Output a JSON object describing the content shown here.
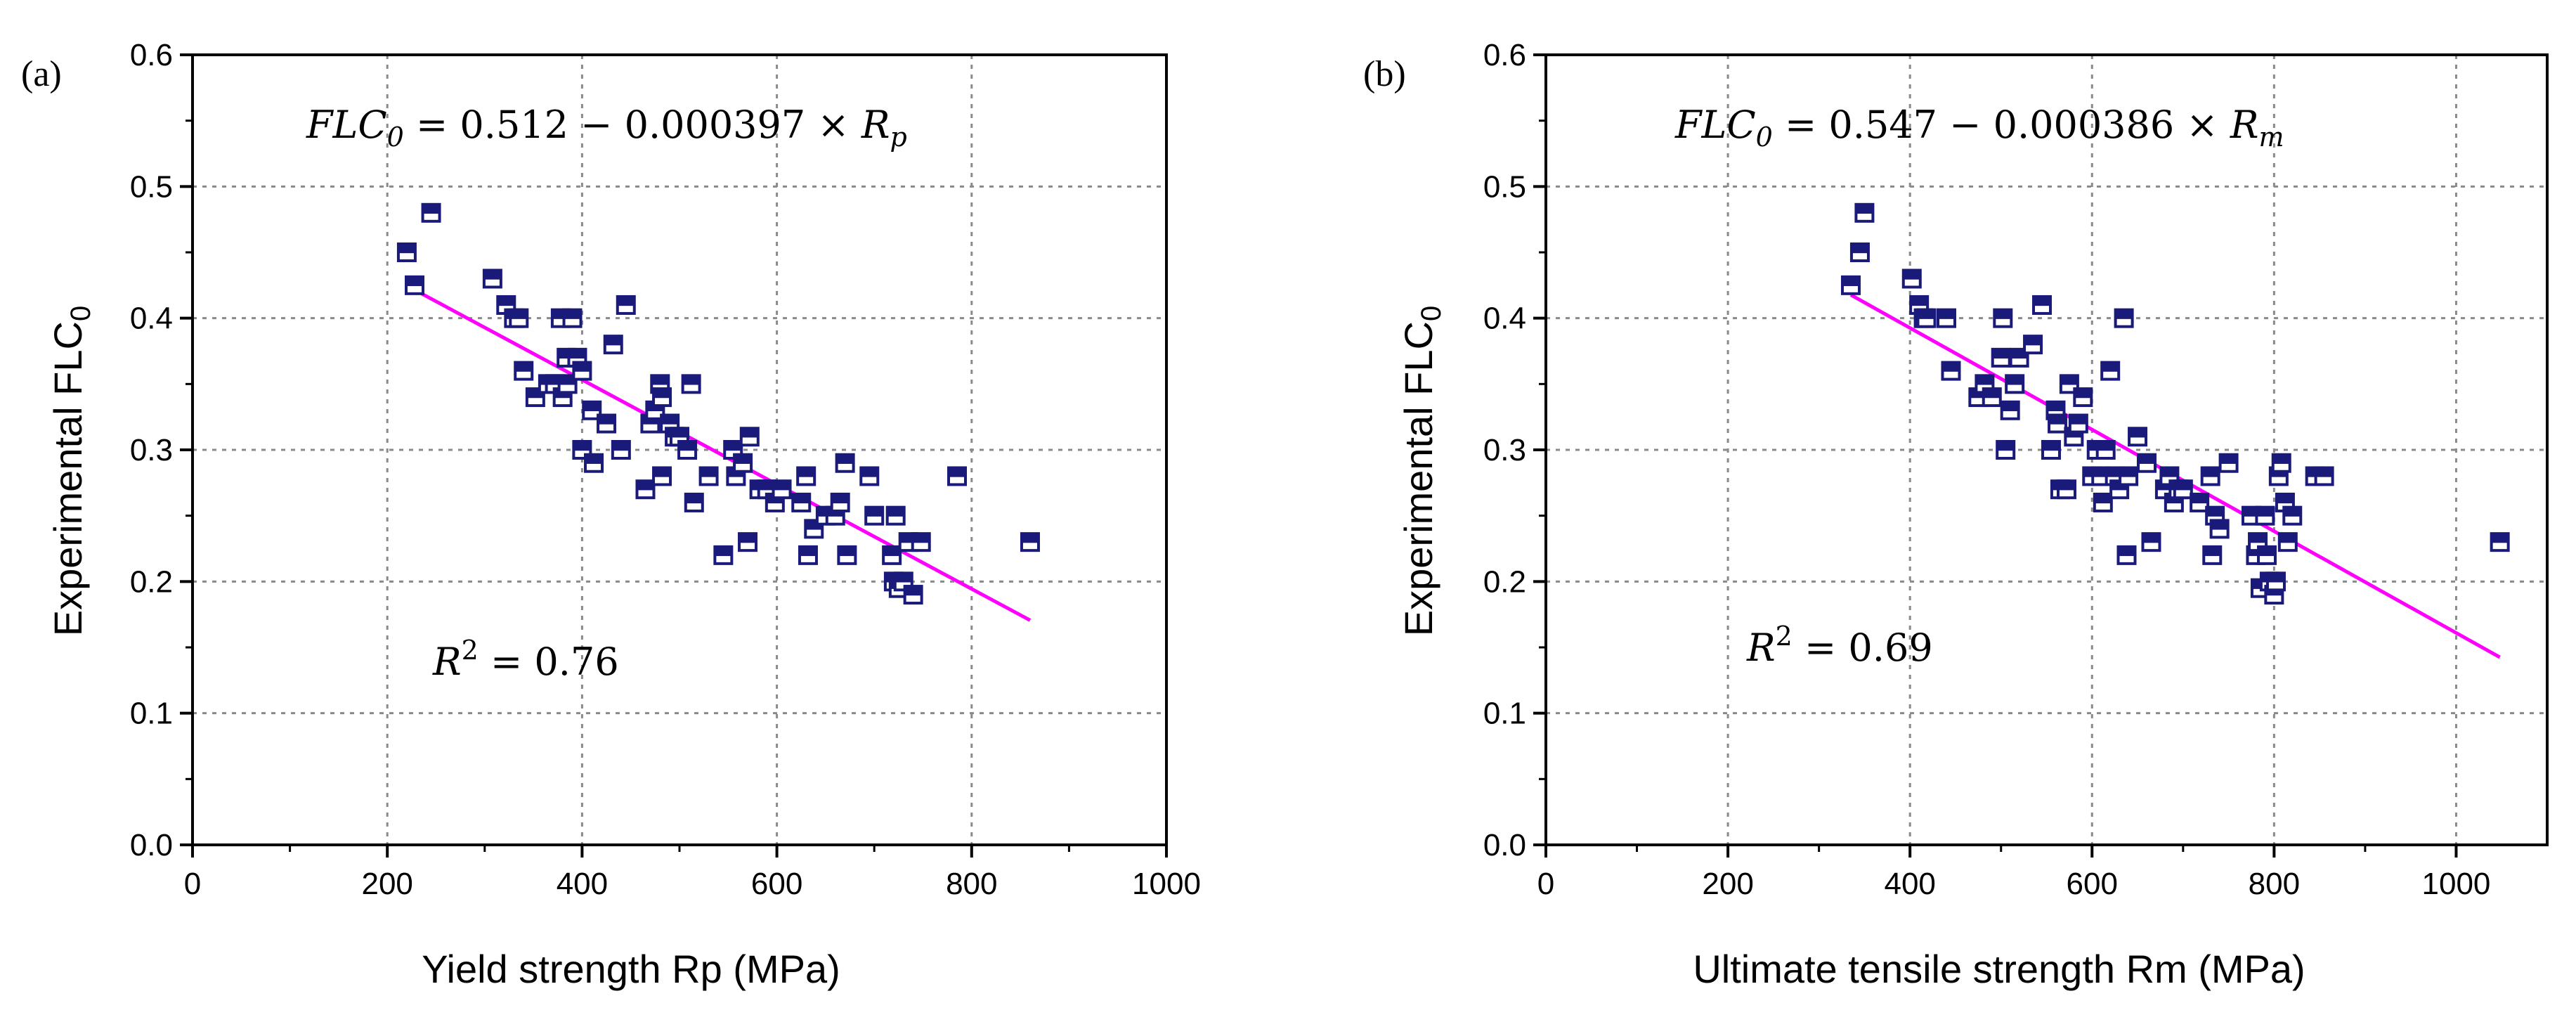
{
  "chart_data": [
    {
      "type": "scatter",
      "panel_label": "(a)",
      "xlabel": "Yield strength Rp (MPa)",
      "ylabel_main": "Experimental FLC",
      "ylabel_sub": "0",
      "xlim": [
        0,
        1000
      ],
      "ylim": [
        0.0,
        0.6
      ],
      "xticks": [
        "0",
        "200",
        "400",
        "600",
        "800",
        "1000"
      ],
      "yticks": [
        "0.0",
        "0.1",
        "0.2",
        "0.3",
        "0.4",
        "0.5",
        "0.6"
      ],
      "grid": true,
      "equation": {
        "lhs_main": "FLC",
        "lhs_sub": "0",
        "middle": " = 0.512 − 0.000397 × ",
        "rhs_main": "R",
        "rhs_sub": "p"
      },
      "r2": {
        "symbol": "R",
        "exponent": "2",
        "value_text": " = 0.76"
      },
      "fit": {
        "intercept": 0.512,
        "slope": -0.000397,
        "x_range": [
          228,
          860
        ]
      },
      "marker_color": "#1a1a7a",
      "fit_color": "#ff00ff",
      "points": [
        [
          220,
          0.45
        ],
        [
          228,
          0.425
        ],
        [
          245,
          0.48
        ],
        [
          308,
          0.43
        ],
        [
          322,
          0.41
        ],
        [
          330,
          0.4
        ],
        [
          335,
          0.4
        ],
        [
          340,
          0.36
        ],
        [
          352,
          0.34
        ],
        [
          365,
          0.35
        ],
        [
          372,
          0.35
        ],
        [
          380,
          0.34
        ],
        [
          378,
          0.4
        ],
        [
          384,
          0.37
        ],
        [
          385,
          0.35
        ],
        [
          390,
          0.4
        ],
        [
          395,
          0.37
        ],
        [
          400,
          0.36
        ],
        [
          400,
          0.3
        ],
        [
          410,
          0.33
        ],
        [
          412,
          0.29
        ],
        [
          425,
          0.32
        ],
        [
          432,
          0.38
        ],
        [
          440,
          0.3
        ],
        [
          445,
          0.41
        ],
        [
          465,
          0.27
        ],
        [
          470,
          0.32
        ],
        [
          475,
          0.33
        ],
        [
          480,
          0.35
        ],
        [
          482,
          0.34
        ],
        [
          482,
          0.28
        ],
        [
          490,
          0.32
        ],
        [
          495,
          0.31
        ],
        [
          500,
          0.31
        ],
        [
          508,
          0.3
        ],
        [
          512,
          0.35
        ],
        [
          515,
          0.26
        ],
        [
          530,
          0.28
        ],
        [
          545,
          0.22
        ],
        [
          555,
          0.3
        ],
        [
          558,
          0.28
        ],
        [
          565,
          0.29
        ],
        [
          570,
          0.23
        ],
        [
          572,
          0.31
        ],
        [
          582,
          0.27
        ],
        [
          590,
          0.27
        ],
        [
          598,
          0.26
        ],
        [
          605,
          0.27
        ],
        [
          625,
          0.26
        ],
        [
          630,
          0.28
        ],
        [
          632,
          0.22
        ],
        [
          638,
          0.24
        ],
        [
          650,
          0.25
        ],
        [
          660,
          0.25
        ],
        [
          665,
          0.26
        ],
        [
          670,
          0.29
        ],
        [
          672,
          0.22
        ],
        [
          695,
          0.28
        ],
        [
          700,
          0.25
        ],
        [
          718,
          0.22
        ],
        [
          720,
          0.2
        ],
        [
          722,
          0.25
        ],
        [
          725,
          0.195
        ],
        [
          730,
          0.2
        ],
        [
          735,
          0.23
        ],
        [
          740,
          0.19
        ],
        [
          748,
          0.23
        ],
        [
          785,
          0.28
        ],
        [
          860,
          0.23
        ]
      ]
    },
    {
      "type": "scatter",
      "panel_label": "(b)",
      "xlabel": "Ultimate tensile strength Rm (MPa)",
      "ylabel_main": "Experimental FLC",
      "ylabel_sub": "0",
      "xlim": [
        0,
        1100
      ],
      "ylim": [
        0.0,
        0.6
      ],
      "xticks": [
        "0",
        "200",
        "400",
        "600",
        "800",
        "1000"
      ],
      "yticks": [
        "0.0",
        "0.1",
        "0.2",
        "0.3",
        "0.4",
        "0.5",
        "0.6"
      ],
      "grid": true,
      "equation": {
        "lhs_main": "FLC",
        "lhs_sub": "0",
        "middle": " = 0.547 − 0.000386 × ",
        "rhs_main": "R",
        "rhs_sub": "m"
      },
      "r2": {
        "symbol": "R",
        "exponent": "2",
        "value_text": " = 0.69"
      },
      "fit": {
        "intercept": 0.547,
        "slope": -0.000386,
        "x_range": [
          335,
          1048
        ]
      },
      "marker_color": "#1a1a7a",
      "fit_color": "#ff00ff",
      "points": [
        [
          335,
          0.425
        ],
        [
          345,
          0.45
        ],
        [
          350,
          0.48
        ],
        [
          402,
          0.43
        ],
        [
          410,
          0.41
        ],
        [
          415,
          0.4
        ],
        [
          418,
          0.4
        ],
        [
          440,
          0.4
        ],
        [
          445,
          0.36
        ],
        [
          475,
          0.34
        ],
        [
          482,
          0.35
        ],
        [
          490,
          0.34
        ],
        [
          500,
          0.37
        ],
        [
          502,
          0.4
        ],
        [
          505,
          0.3
        ],
        [
          510,
          0.33
        ],
        [
          515,
          0.35
        ],
        [
          520,
          0.37
        ],
        [
          535,
          0.38
        ],
        [
          545,
          0.41
        ],
        [
          555,
          0.3
        ],
        [
          560,
          0.33
        ],
        [
          562,
          0.32
        ],
        [
          565,
          0.27
        ],
        [
          572,
          0.27
        ],
        [
          575,
          0.35
        ],
        [
          580,
          0.31
        ],
        [
          585,
          0.32
        ],
        [
          590,
          0.34
        ],
        [
          600,
          0.28
        ],
        [
          605,
          0.3
        ],
        [
          610,
          0.28
        ],
        [
          612,
          0.26
        ],
        [
          615,
          0.3
        ],
        [
          620,
          0.36
        ],
        [
          625,
          0.28
        ],
        [
          630,
          0.27
        ],
        [
          635,
          0.4
        ],
        [
          638,
          0.22
        ],
        [
          640,
          0.28
        ],
        [
          650,
          0.31
        ],
        [
          660,
          0.29
        ],
        [
          665,
          0.23
        ],
        [
          680,
          0.27
        ],
        [
          685,
          0.28
        ],
        [
          690,
          0.26
        ],
        [
          695,
          0.27
        ],
        [
          700,
          0.27
        ],
        [
          718,
          0.26
        ],
        [
          730,
          0.28
        ],
        [
          732,
          0.22
        ],
        [
          735,
          0.25
        ],
        [
          740,
          0.24
        ],
        [
          750,
          0.29
        ],
        [
          775,
          0.25
        ],
        [
          780,
          0.22
        ],
        [
          782,
          0.23
        ],
        [
          785,
          0.195
        ],
        [
          790,
          0.25
        ],
        [
          792,
          0.22
        ],
        [
          795,
          0.2
        ],
        [
          800,
          0.19
        ],
        [
          802,
          0.2
        ],
        [
          805,
          0.28
        ],
        [
          808,
          0.29
        ],
        [
          812,
          0.26
        ],
        [
          815,
          0.23
        ],
        [
          820,
          0.25
        ],
        [
          845,
          0.28
        ],
        [
          855,
          0.28
        ],
        [
          1048,
          0.23
        ]
      ]
    }
  ]
}
